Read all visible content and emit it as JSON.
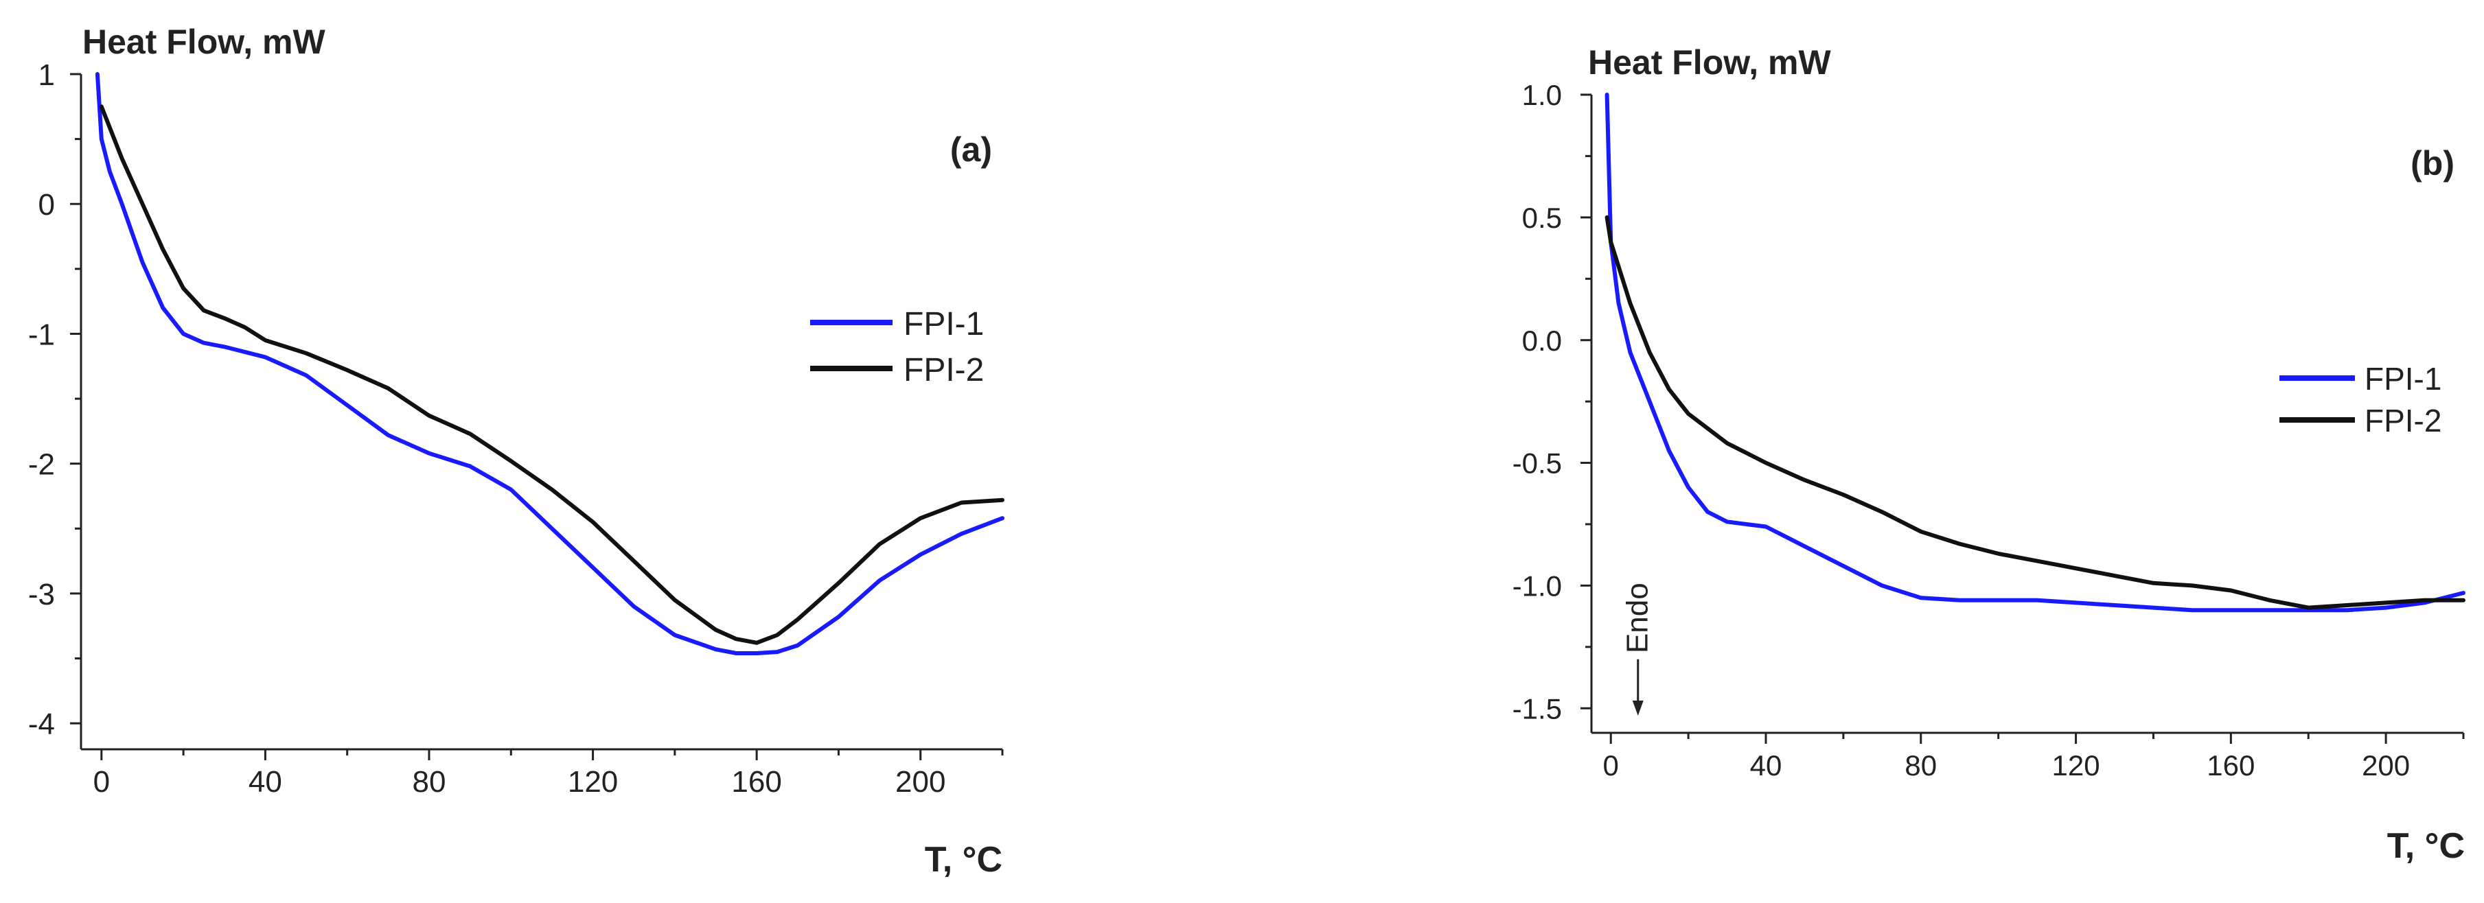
{
  "chart_data": [
    {
      "type": "line",
      "panel_label": "(a)",
      "ylabel": "Heat Flow, mW",
      "xlabel": "T, °C",
      "xlim": [
        -5,
        220
      ],
      "ylim": [
        -4.2,
        1.0
      ],
      "xticks": [
        "0",
        "40",
        "80",
        "120",
        "160",
        "200"
      ],
      "xtick_values": [
        0,
        40,
        80,
        120,
        160,
        200
      ],
      "yticks": [
        "1",
        "0",
        "-1",
        "-2",
        "-3",
        "-4"
      ],
      "ytick_values": [
        1,
        0,
        -1,
        -2,
        -3,
        -4
      ],
      "legend_position": "center-right",
      "series": [
        {
          "name": "FPI-1",
          "color": "#1a1aff",
          "x": [
            -1,
            0,
            2,
            5,
            10,
            15,
            20,
            25,
            30,
            40,
            50,
            60,
            70,
            80,
            90,
            100,
            110,
            120,
            130,
            140,
            150,
            155,
            160,
            165,
            170,
            180,
            190,
            200,
            210,
            220
          ],
          "y": [
            1.0,
            0.5,
            0.25,
            0.0,
            -0.45,
            -0.8,
            -1.0,
            -1.07,
            -1.1,
            -1.18,
            -1.32,
            -1.55,
            -1.78,
            -1.92,
            -2.02,
            -2.2,
            -2.5,
            -2.8,
            -3.1,
            -3.32,
            -3.43,
            -3.46,
            -3.46,
            -3.45,
            -3.4,
            -3.18,
            -2.9,
            -2.7,
            -2.54,
            -2.42
          ]
        },
        {
          "name": "FPI-2",
          "color": "#111111",
          "x": [
            0,
            5,
            10,
            15,
            20,
            25,
            30,
            35,
            40,
            50,
            60,
            70,
            80,
            90,
            100,
            110,
            120,
            130,
            140,
            150,
            155,
            160,
            165,
            170,
            180,
            190,
            200,
            210,
            220
          ],
          "y": [
            0.75,
            0.35,
            0.0,
            -0.35,
            -0.65,
            -0.82,
            -0.88,
            -0.95,
            -1.05,
            -1.15,
            -1.28,
            -1.42,
            -1.63,
            -1.77,
            -1.98,
            -2.2,
            -2.45,
            -2.75,
            -3.05,
            -3.28,
            -3.35,
            -3.38,
            -3.32,
            -3.2,
            -2.92,
            -2.62,
            -2.42,
            -2.3,
            -2.28
          ]
        }
      ]
    },
    {
      "type": "line",
      "panel_label": "(b)",
      "ylabel": "Heat Flow, mW",
      "xlabel": "T, °C",
      "xlim": [
        -5,
        220
      ],
      "ylim": [
        -1.6,
        1.0
      ],
      "xticks": [
        "0",
        "40",
        "80",
        "120",
        "160",
        "200"
      ],
      "xtick_values": [
        0,
        40,
        80,
        120,
        160,
        200
      ],
      "yticks": [
        "1.0",
        "0.5",
        "0.0",
        "-0.5",
        "-1.0",
        "-1.5"
      ],
      "ytick_values": [
        1.0,
        0.5,
        0.0,
        -0.5,
        -1.0,
        -1.5
      ],
      "legend_position": "center-right",
      "annotation": {
        "text": "Endo",
        "x": 7,
        "y_from": -1.3,
        "y_to": -1.53
      },
      "series": [
        {
          "name": "FPI-1",
          "color": "#1a1aff",
          "x": [
            -1,
            -0.5,
            0,
            2,
            5,
            10,
            15,
            20,
            25,
            30,
            35,
            40,
            45,
            50,
            60,
            70,
            80,
            90,
            100,
            110,
            120,
            130,
            140,
            150,
            160,
            170,
            180,
            190,
            200,
            210,
            220
          ],
          "y": [
            1.0,
            0.7,
            0.4,
            0.15,
            -0.05,
            -0.25,
            -0.45,
            -0.6,
            -0.7,
            -0.74,
            -0.75,
            -0.76,
            -0.8,
            -0.84,
            -0.92,
            -1.0,
            -1.05,
            -1.06,
            -1.06,
            -1.06,
            -1.07,
            -1.08,
            -1.09,
            -1.1,
            -1.1,
            -1.1,
            -1.1,
            -1.1,
            -1.09,
            -1.07,
            -1.03
          ]
        },
        {
          "name": "FPI-2",
          "color": "#111111",
          "x": [
            -1,
            0,
            2,
            5,
            10,
            15,
            20,
            30,
            40,
            50,
            60,
            70,
            80,
            90,
            100,
            110,
            120,
            130,
            140,
            150,
            160,
            170,
            180,
            190,
            200,
            210,
            220
          ],
          "y": [
            0.5,
            0.4,
            0.3,
            0.15,
            -0.05,
            -0.2,
            -0.3,
            -0.42,
            -0.5,
            -0.57,
            -0.63,
            -0.7,
            -0.78,
            -0.83,
            -0.87,
            -0.9,
            -0.93,
            -0.96,
            -0.99,
            -1.0,
            -1.02,
            -1.06,
            -1.09,
            -1.08,
            -1.07,
            -1.06,
            -1.06
          ]
        }
      ]
    }
  ]
}
